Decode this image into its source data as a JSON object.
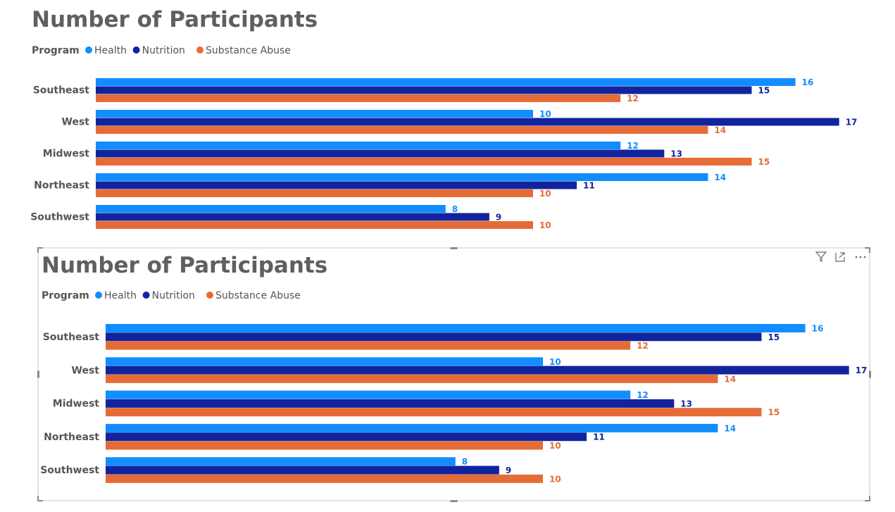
{
  "colors": {
    "Health": "#118dff",
    "Nutrition": "#12239e",
    "Substance Abuse": "#e66c37",
    "Health_label": "#118dff",
    "Nutrition_label": "#12239e",
    "Substance Abuse_label": "#e66c37"
  },
  "visual_header": {
    "icons": [
      "filter-icon",
      "focus-mode-icon",
      "more-options-icon"
    ]
  },
  "chart_data": [
    {
      "type": "bar",
      "orientation": "horizontal",
      "title": "Number of Participants",
      "legend_title": "Program",
      "legend_position": "top-left",
      "categories": [
        "Southeast",
        "West",
        "Midwest",
        "Northeast",
        "Southwest"
      ],
      "series": [
        {
          "name": "Health",
          "values": [
            16,
            10,
            12,
            14,
            8
          ]
        },
        {
          "name": "Nutrition",
          "values": [
            15,
            17,
            13,
            11,
            9
          ]
        },
        {
          "name": "Substance Abuse",
          "values": [
            12,
            14,
            15,
            10,
            10
          ]
        }
      ],
      "xlim": [
        0,
        17
      ],
      "grid": false,
      "data_labels": true,
      "selected": false
    },
    {
      "type": "bar",
      "orientation": "horizontal",
      "title": "Number of Participants",
      "legend_title": "Program",
      "legend_position": "top-left",
      "categories": [
        "Southeast",
        "West",
        "Midwest",
        "Northeast",
        "Southwest"
      ],
      "series": [
        {
          "name": "Health",
          "values": [
            16,
            10,
            12,
            14,
            8
          ]
        },
        {
          "name": "Nutrition",
          "values": [
            15,
            17,
            13,
            11,
            9
          ]
        },
        {
          "name": "Substance Abuse",
          "values": [
            12,
            14,
            15,
            10,
            10
          ]
        }
      ],
      "xlim": [
        0,
        17
      ],
      "grid": false,
      "data_labels": true,
      "selected": true
    }
  ]
}
